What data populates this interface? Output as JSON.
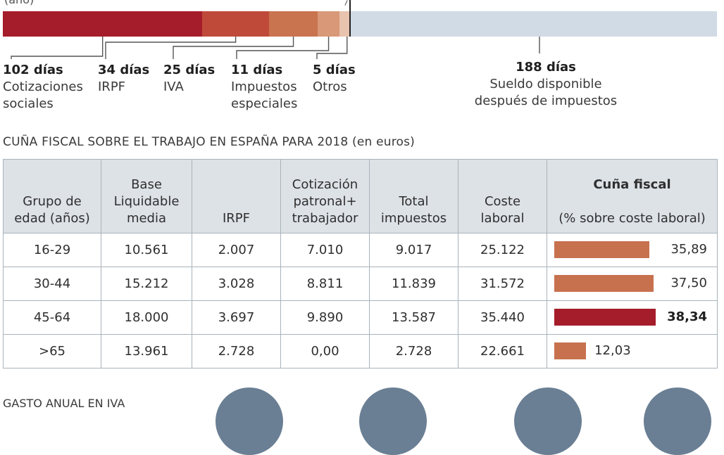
{
  "chart_data": [
    {
      "type": "bar",
      "orientation": "horizontal-stacked",
      "unit": "días",
      "total": 365,
      "series": [
        {
          "label": "Cotizaciones sociales",
          "value": 102,
          "color": "#a51d2a"
        },
        {
          "label": "IRPF",
          "value": 34,
          "color": "#bf4a3a"
        },
        {
          "label": "IVA",
          "value": 25,
          "color": "#c9734f"
        },
        {
          "label": "Impuestos especiales",
          "value": 11,
          "color": "#d99878"
        },
        {
          "label": "Otros",
          "value": 5,
          "color": "#e8c3ae"
        },
        {
          "label": "Sueldo disponible después de impuestos",
          "value": 188,
          "color": "#d0dbe5"
        }
      ],
      "labels": [
        {
          "num": "102 días",
          "cat": "Cotizaciones\nsociales"
        },
        {
          "num": "34 días",
          "cat": "IRPF"
        },
        {
          "num": "25 días",
          "cat": "IVA"
        },
        {
          "num": "11 días",
          "cat": "Impuestos\nespeciales"
        },
        {
          "num": "5 días",
          "cat": "Otros"
        },
        {
          "num": "188 días",
          "cat": "Sueldo disponible\ndespués de impuestos"
        }
      ]
    },
    {
      "type": "table",
      "title": "CUÑA FISCAL SOBRE EL TRABAJO EN ESPAÑA PARA 2018 (en euros)",
      "columns": [
        "Grupo de\nedad (años)",
        "Base\nLiquidable\nmedia",
        "IRPF",
        "Cotización\npatronal+\ntrabajador",
        "Total\nimpuestos",
        "Coste\nlaboral"
      ],
      "last_column": {
        "title": "Cuña fiscal",
        "subtitle": "(% sobre coste laboral)"
      },
      "rows": [
        {
          "cells": [
            "16-29",
            "10.561",
            "2.007",
            "7.010",
            "9.017",
            "25.122"
          ],
          "wedge": 35.89,
          "wedge_label": "35,89",
          "highlight": false
        },
        {
          "cells": [
            "30-44",
            "15.212",
            "3.028",
            "8.811",
            "11.839",
            "31.572"
          ],
          "wedge": 37.5,
          "wedge_label": "37,50",
          "highlight": false
        },
        {
          "cells": [
            "45-64",
            "18.000",
            "3.697",
            "9.890",
            "13.587",
            "35.440"
          ],
          "wedge": 38.34,
          "wedge_label": "38,34",
          "highlight": true
        },
        {
          "cells": [
            ">65",
            "13.961",
            "2.728",
            "0,00",
            "2.728",
            "22.661"
          ],
          "wedge": 12.03,
          "wedge_label": "12,03",
          "highlight": false
        }
      ],
      "bar_colors": {
        "normal": "#c7714f",
        "highlight": "#a51d2a"
      },
      "bar_max": 40
    }
  ],
  "partial": {
    "top_text": "(año)",
    "next_section_title": "GASTO ANUAL EN IVA"
  }
}
